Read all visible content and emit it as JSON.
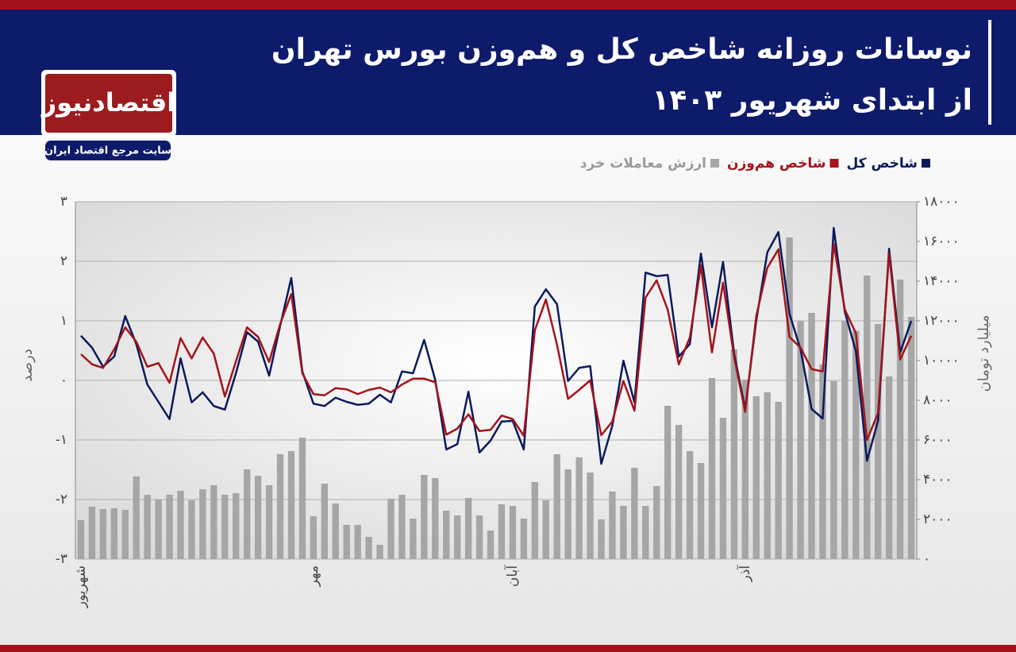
{
  "header": {
    "title_line1": "نوسانات روزانه شاخص کل و هم‌وزن بورس تهران",
    "title_line2": "از ابتدای شهریور ۱۴۰۳"
  },
  "logo": {
    "name": "اقتصادنیوز",
    "tagline": "سایت مرجع اقتصاد ایران"
  },
  "chart_data": {
    "type": "combo",
    "y_label": "درصد",
    "y2_label": "میلیارد تومان",
    "categories": [
      "شهریور",
      null,
      null,
      null,
      null,
      null,
      null,
      null,
      null,
      null,
      null,
      null,
      null,
      null,
      null,
      null,
      null,
      null,
      null,
      null,
      null,
      "مهر",
      null,
      null,
      null,
      null,
      null,
      null,
      null,
      null,
      null,
      null,
      null,
      null,
      null,
      null,
      null,
      null,
      null,
      "آبان",
      null,
      null,
      null,
      null,
      null,
      null,
      null,
      null,
      null,
      null,
      null,
      null,
      null,
      null,
      null,
      null,
      null,
      null,
      null,
      null,
      "آذر",
      null,
      null,
      null,
      null,
      null,
      null,
      null,
      null,
      null,
      null,
      null,
      null,
      null,
      null,
      null
    ],
    "series": [
      {
        "name": "شاخص کل",
        "type": "line",
        "color": "#0b1a5c",
        "axis": "y",
        "values": [
          0.75,
          0.55,
          0.23,
          0.4,
          1.08,
          0.61,
          -0.07,
          -0.36,
          -0.65,
          0.37,
          -0.37,
          -0.2,
          -0.43,
          -0.49,
          0.12,
          0.81,
          0.65,
          0.08,
          0.92,
          1.72,
          0.15,
          -0.39,
          -0.43,
          -0.29,
          -0.36,
          -0.41,
          -0.39,
          -0.24,
          -0.37,
          0.15,
          0.12,
          0.68,
          0.01,
          -1.16,
          -1.07,
          -0.19,
          -1.21,
          -1.01,
          -0.69,
          -0.68,
          -1.16,
          1.24,
          1.53,
          1.28,
          -0.01,
          0.21,
          0.24,
          -1.4,
          -0.76,
          0.33,
          -0.37,
          1.81,
          1.75,
          1.77,
          0.4,
          0.61,
          2.13,
          0.89,
          1.99,
          0.45,
          -0.48,
          1.0,
          2.15,
          2.49,
          1.12,
          0.52,
          -0.48,
          -0.64,
          2.56,
          1.15,
          0.49,
          -1.35,
          -0.68,
          2.21,
          0.47,
          1.0
        ]
      },
      {
        "name": "شاخص هم‌وزن",
        "type": "line",
        "color": "#a3141b",
        "axis": "y",
        "values": [
          0.44,
          0.27,
          0.21,
          0.52,
          0.89,
          0.65,
          0.23,
          0.29,
          -0.04,
          0.71,
          0.37,
          0.72,
          0.45,
          -0.27,
          0.32,
          0.89,
          0.73,
          0.31,
          0.95,
          1.45,
          0.12,
          -0.23,
          -0.25,
          -0.13,
          -0.15,
          -0.23,
          -0.16,
          -0.12,
          -0.2,
          -0.07,
          0.03,
          0.03,
          -0.03,
          -0.91,
          -0.81,
          -0.57,
          -0.85,
          -0.83,
          -0.59,
          -0.65,
          -0.93,
          0.84,
          1.36,
          0.6,
          -0.31,
          -0.16,
          0,
          -0.92,
          -0.69,
          -0.01,
          -0.51,
          1.39,
          1.68,
          1.19,
          0.27,
          0.72,
          1.93,
          0.47,
          1.64,
          0.39,
          -0.53,
          1.08,
          1.89,
          2.2,
          0.73,
          0.55,
          0.19,
          0.15,
          2.29,
          1.19,
          0.79,
          -1.0,
          -0.55,
          2.13,
          0.35,
          0.75
        ]
      },
      {
        "name": "ارزش معاملات خرد",
        "type": "bar",
        "color": "#a6a6a6",
        "axis": "y2",
        "values": [
          1960,
          2640,
          2520,
          2560,
          2480,
          4160,
          3240,
          3000,
          3240,
          3440,
          2960,
          3520,
          3720,
          3240,
          3320,
          4520,
          4200,
          3720,
          5280,
          5440,
          6120,
          2160,
          3800,
          2800,
          1720,
          1720,
          1120,
          720,
          3040,
          3240,
          2040,
          4240,
          4080,
          2440,
          2200,
          3080,
          2200,
          1440,
          2760,
          2680,
          2040,
          3880,
          2960,
          5280,
          4520,
          5120,
          4360,
          2000,
          3400,
          2680,
          4600,
          2680,
          3680,
          7720,
          6760,
          5440,
          4840,
          9120,
          7120,
          10560,
          9040,
          8200,
          8400,
          7920,
          16200,
          12000,
          12400,
          9800,
          8960,
          12000,
          11500,
          14280,
          11840,
          9200,
          14080,
          12200
        ]
      }
    ],
    "ylim": [
      -3,
      3
    ],
    "yticks": [
      {
        "value": -3,
        "label": "-۳"
      },
      {
        "value": -2,
        "label": "-۲"
      },
      {
        "value": -1,
        "label": "-۱"
      },
      {
        "value": 0,
        "label": "۰"
      },
      {
        "value": 1,
        "label": "۱"
      },
      {
        "value": 2,
        "label": "۲"
      },
      {
        "value": 3,
        "label": "۳"
      }
    ],
    "y2lim": [
      0,
      18000
    ],
    "y2ticks": [
      {
        "value": 0,
        "label": "۰"
      },
      {
        "value": 2000,
        "label": "۲۰۰۰"
      },
      {
        "value": 4000,
        "label": "۴۰۰۰"
      },
      {
        "value": 6000,
        "label": "۶۰۰۰"
      },
      {
        "value": 8000,
        "label": "۸۰۰۰"
      },
      {
        "value": 10000,
        "label": "۱۰۰۰۰"
      },
      {
        "value": 12000,
        "label": "۱۲۰۰۰"
      },
      {
        "value": 14000,
        "label": "۱۴۰۰۰"
      },
      {
        "value": 16000,
        "label": "۱۶۰۰۰"
      },
      {
        "value": 18000,
        "label": "۱۸۰۰۰"
      }
    ],
    "grid": true
  }
}
